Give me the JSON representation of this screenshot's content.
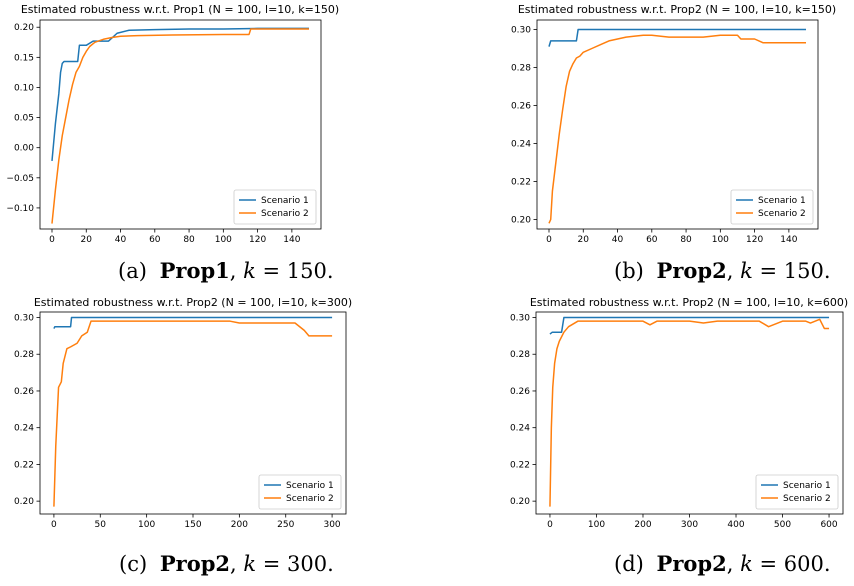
{
  "colors": {
    "scenario1": "#1f77b4",
    "scenario2": "#ff7f0e"
  },
  "chart_data": [
    {
      "type": "line",
      "title": "Estimated robustness w.r.t. Prop1 (N = 100, l=10, k=150)",
      "xlim": [
        -7,
        157
      ],
      "ylim": [
        -0.135,
        0.212
      ],
      "xticks": [
        0,
        20,
        40,
        60,
        80,
        100,
        120,
        140
      ],
      "yticks": [
        -0.1,
        -0.05,
        0.0,
        0.05,
        0.1,
        0.15,
        0.2
      ],
      "ytick_labels": [
        "−0.10",
        "−0.05",
        "0.00",
        "0.05",
        "0.10",
        "0.15",
        "0.20"
      ],
      "legend": "bottom-right",
      "series": [
        {
          "name": "Scenario 1",
          "color": "#1f77b4",
          "x": [
            0,
            2,
            4,
            5,
            6,
            7,
            8,
            9,
            10,
            15,
            16,
            20,
            24,
            33,
            38,
            45,
            60,
            80,
            100,
            120,
            150
          ],
          "y": [
            -0.022,
            0.04,
            0.09,
            0.125,
            0.14,
            0.143,
            0.143,
            0.143,
            0.143,
            0.143,
            0.17,
            0.17,
            0.177,
            0.177,
            0.19,
            0.195,
            0.196,
            0.197,
            0.197,
            0.198,
            0.198
          ]
        },
        {
          "name": "Scenario 2",
          "color": "#ff7f0e",
          "x": [
            0,
            2,
            4,
            6,
            8,
            10,
            12,
            14,
            16,
            18,
            20,
            22,
            25,
            30,
            35,
            40,
            50,
            70,
            100,
            115,
            116,
            150
          ],
          "y": [
            -0.126,
            -0.07,
            -0.02,
            0.02,
            0.05,
            0.08,
            0.105,
            0.125,
            0.135,
            0.15,
            0.16,
            0.168,
            0.175,
            0.18,
            0.183,
            0.185,
            0.186,
            0.187,
            0.188,
            0.188,
            0.197,
            0.197
          ]
        }
      ]
    },
    {
      "type": "line",
      "title": "Estimated robustness w.r.t. Prop2 (N = 100, l=10, k=150)",
      "xlim": [
        -7,
        157
      ],
      "ylim": [
        0.195,
        0.305
      ],
      "xticks": [
        0,
        20,
        40,
        60,
        80,
        100,
        120,
        140
      ],
      "yticks": [
        0.2,
        0.22,
        0.24,
        0.26,
        0.28,
        0.3
      ],
      "ytick_labels": [
        "0.20",
        "0.22",
        "0.24",
        "0.26",
        "0.28",
        "0.30"
      ],
      "legend": "bottom-right",
      "series": [
        {
          "name": "Scenario 1",
          "color": "#1f77b4",
          "x": [
            0,
            1,
            16,
            17,
            150
          ],
          "y": [
            0.291,
            0.294,
            0.294,
            0.3,
            0.3
          ]
        },
        {
          "name": "Scenario 2",
          "color": "#ff7f0e",
          "x": [
            0,
            1,
            2,
            4,
            6,
            8,
            10,
            12,
            14,
            16,
            18,
            20,
            25,
            30,
            35,
            45,
            55,
            60,
            70,
            80,
            90,
            100,
            110,
            112,
            120,
            125,
            150
          ],
          "y": [
            0.198,
            0.2,
            0.215,
            0.23,
            0.245,
            0.258,
            0.27,
            0.278,
            0.282,
            0.285,
            0.286,
            0.288,
            0.29,
            0.292,
            0.294,
            0.296,
            0.297,
            0.297,
            0.296,
            0.296,
            0.296,
            0.297,
            0.297,
            0.295,
            0.295,
            0.293,
            0.293
          ]
        }
      ]
    },
    {
      "type": "line",
      "title": "Estimated robustness w.r.t. Prop2 (N = 100, l=10, k=300)",
      "xlim": [
        -15,
        315
      ],
      "ylim": [
        0.193,
        0.303
      ],
      "xticks": [
        0,
        50,
        100,
        150,
        200,
        250,
        300
      ],
      "yticks": [
        0.2,
        0.22,
        0.24,
        0.26,
        0.28,
        0.3
      ],
      "ytick_labels": [
        "0.20",
        "0.22",
        "0.24",
        "0.26",
        "0.28",
        "0.30"
      ],
      "legend": "bottom-right",
      "series": [
        {
          "name": "Scenario 1",
          "color": "#1f77b4",
          "x": [
            0,
            1,
            18,
            19,
            300
          ],
          "y": [
            0.294,
            0.295,
            0.295,
            0.3,
            0.3
          ]
        },
        {
          "name": "Scenario 2",
          "color": "#ff7f0e",
          "x": [
            0,
            2,
            5,
            8,
            10,
            14,
            18,
            25,
            30,
            36,
            40,
            45,
            60,
            80,
            100,
            150,
            190,
            200,
            220,
            230,
            260,
            270,
            275,
            300
          ],
          "y": [
            0.197,
            0.23,
            0.262,
            0.265,
            0.275,
            0.283,
            0.284,
            0.286,
            0.29,
            0.292,
            0.298,
            0.298,
            0.298,
            0.298,
            0.298,
            0.298,
            0.298,
            0.297,
            0.297,
            0.297,
            0.297,
            0.293,
            0.29,
            0.29
          ]
        }
      ]
    },
    {
      "type": "line",
      "title": "Estimated robustness w.r.t. Prop2 (N = 100, l=10, k=600)",
      "xlim": [
        -30,
        630
      ],
      "ylim": [
        0.193,
        0.303
      ],
      "xticks": [
        0,
        100,
        200,
        300,
        400,
        500,
        600
      ],
      "yticks": [
        0.2,
        0.22,
        0.24,
        0.26,
        0.28,
        0.3
      ],
      "ytick_labels": [
        "0.20",
        "0.22",
        "0.24",
        "0.26",
        "0.28",
        "0.30"
      ],
      "legend": "bottom-right",
      "series": [
        {
          "name": "Scenario 1",
          "color": "#1f77b4",
          "x": [
            0,
            5,
            25,
            30,
            600
          ],
          "y": [
            0.291,
            0.292,
            0.292,
            0.3,
            0.3
          ]
        },
        {
          "name": "Scenario 2",
          "color": "#ff7f0e",
          "x": [
            0,
            3,
            6,
            10,
            15,
            20,
            30,
            40,
            60,
            100,
            200,
            215,
            230,
            300,
            330,
            360,
            400,
            450,
            470,
            500,
            550,
            560,
            580,
            590,
            600
          ],
          "y": [
            0.197,
            0.24,
            0.262,
            0.275,
            0.283,
            0.287,
            0.292,
            0.295,
            0.298,
            0.298,
            0.298,
            0.296,
            0.298,
            0.298,
            0.297,
            0.298,
            0.298,
            0.298,
            0.295,
            0.298,
            0.298,
            0.297,
            0.299,
            0.294,
            0.294
          ]
        }
      ]
    }
  ],
  "captions": [
    {
      "label": "(a)",
      "prop": "Prop1",
      "k": "k",
      "rest": " = 150."
    },
    {
      "label": "(b)",
      "prop": "Prop2",
      "k": "k",
      "rest": " = 150."
    },
    {
      "label": "(c)",
      "prop": "Prop2",
      "k": "k",
      "rest": " = 300."
    },
    {
      "label": "(d)",
      "prop": "Prop2",
      "k": "k",
      "rest": " = 600."
    }
  ]
}
